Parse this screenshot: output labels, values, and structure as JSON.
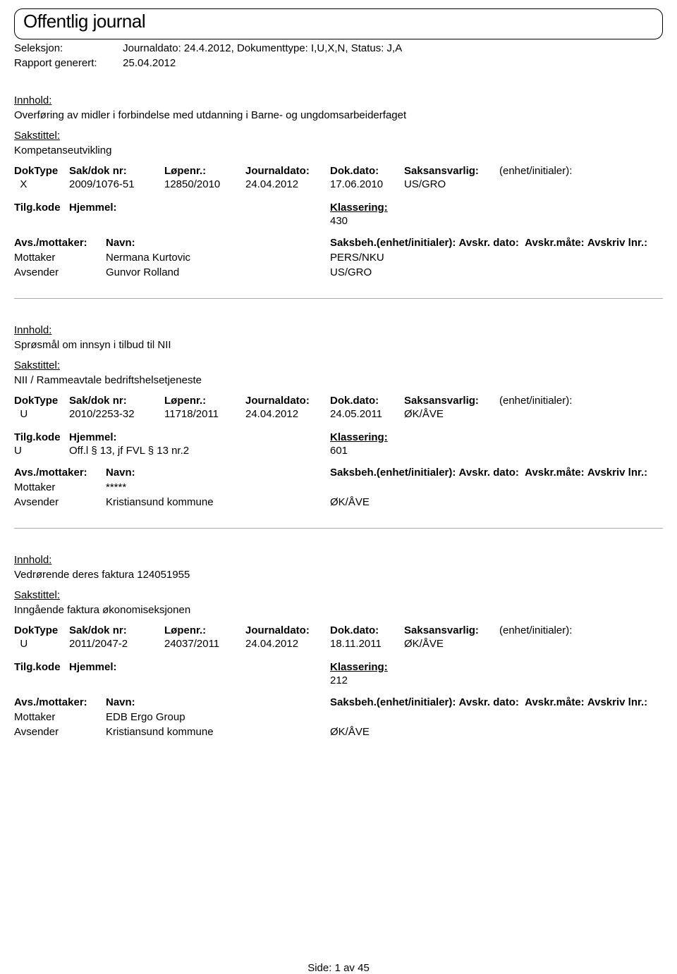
{
  "header": {
    "title": "Offentlig journal",
    "seleksjon_label": "Seleksjon:",
    "seleksjon_value": "Journaldato: 24.4.2012, Dokumenttype: I,U,X,N, Status: J,A",
    "rapport_label": "Rapport generert:",
    "rapport_value": "25.04.2012"
  },
  "labels": {
    "innhold": "Innhold:",
    "sakstittel": "Sakstittel:",
    "doktype": "DokType",
    "saknr": "Sak/dok nr:",
    "lopenr": "Løpenr.:",
    "journaldato": "Journaldato:",
    "dokdato": "Dok.dato:",
    "saksansvarlig": "Saksansvarlig:",
    "enhet": "(enhet/initialer):",
    "tilgkode": "Tilg.kode",
    "hjemmel": "Hjemmel:",
    "klassering": "Klassering:",
    "avsmottaker": "Avs./mottaker:",
    "navn": "Navn:",
    "saksbeh": "Saksbeh.(enhet/initialer):",
    "avskr": "Avskr. dato:",
    "avskrmate": "Avskr.måte:",
    "avskrivlnr": "Avskriv lnr.:",
    "mottaker": "Mottaker",
    "avsender": "Avsender"
  },
  "entries": [
    {
      "innhold": "Overføring av midler i forbindelse med utdanning i Barne- og ungdomsarbeiderfaget",
      "sakstittel": "Kompetanseutvikling",
      "doktype": "X",
      "saknr": "2009/1076-51",
      "lopenr": "12850/2010",
      "journaldato": "24.04.2012",
      "dokdato": "17.06.2010",
      "saksansvarlig": "US/GRO",
      "tilgkode": "",
      "hjemmel": "",
      "klassering": "430",
      "parties": [
        {
          "role": "Mottaker",
          "navn": "Nermana Kurtovic",
          "saksbeh": "PERS/NKU"
        },
        {
          "role": "Avsender",
          "navn": "Gunvor Rolland",
          "saksbeh": "US/GRO"
        }
      ]
    },
    {
      "innhold": "Sprøsmål om innsyn i tilbud til NII",
      "sakstittel": "NII / Rammeavtale bedriftshelsetjeneste",
      "doktype": "U",
      "saknr": "2010/2253-32",
      "lopenr": "11718/2011",
      "journaldato": "24.04.2012",
      "dokdato": "24.05.2011",
      "saksansvarlig": "ØK/ÅVE",
      "tilgkode": "U",
      "hjemmel": "Off.l § 13, jf FVL § 13 nr.2",
      "klassering": "601",
      "parties": [
        {
          "role": "Mottaker",
          "navn": "*****",
          "saksbeh": ""
        },
        {
          "role": "Avsender",
          "navn": "Kristiansund kommune",
          "saksbeh": "ØK/ÅVE"
        }
      ]
    },
    {
      "innhold": "Vedrørende deres faktura 124051955",
      "sakstittel": "Inngående faktura økonomiseksjonen",
      "doktype": "U",
      "saknr": "2011/2047-2",
      "lopenr": "24037/2011",
      "journaldato": "24.04.2012",
      "dokdato": "18.11.2011",
      "saksansvarlig": "ØK/ÅVE",
      "tilgkode": "",
      "hjemmel": "",
      "klassering": "212",
      "parties": [
        {
          "role": "Mottaker",
          "navn": "EDB Ergo Group",
          "saksbeh": ""
        },
        {
          "role": "Avsender",
          "navn": "Kristiansund kommune",
          "saksbeh": "ØK/ÅVE"
        }
      ]
    }
  ],
  "footer": {
    "side_label": "Side:",
    "page_current": "1",
    "page_sep": "av",
    "page_total": "45"
  }
}
